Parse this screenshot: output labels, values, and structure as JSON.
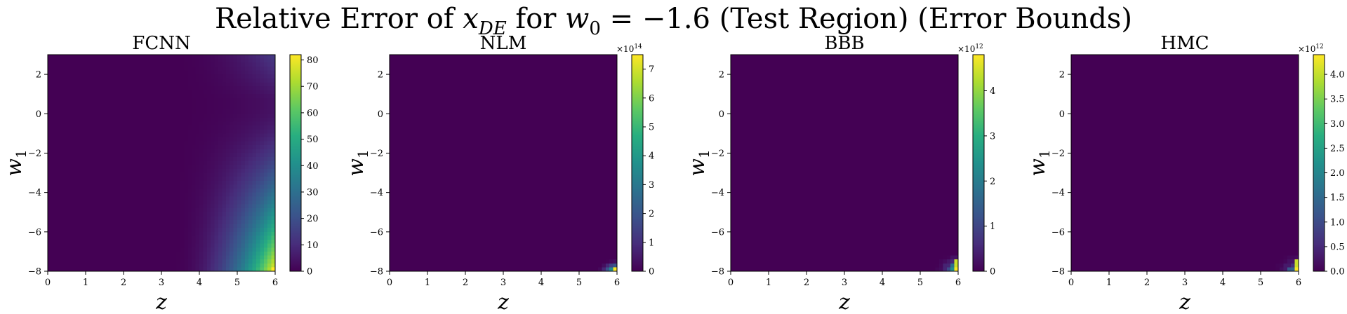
{
  "figure": {
    "title_prefix": "Relative Error of ",
    "title_var": "x",
    "title_var_sub": "DE",
    "title_mid": " for ",
    "title_param": "w",
    "title_param_sub": "0",
    "title_suffix": " = −1.6 (Test Region) (Error Bounds)"
  },
  "colormap": [
    "#440154",
    "#472d7b",
    "#3b528b",
    "#2c728e",
    "#21918c",
    "#28ae80",
    "#5ec962",
    "#addc30",
    "#fde725"
  ],
  "chart_data": [
    {
      "type": "heatmap",
      "title": "FCNN",
      "xlabel": "z",
      "ylabel": "w1",
      "xlim": [
        0,
        6
      ],
      "ylim": [
        -8,
        3
      ],
      "x_ticks": [
        "0",
        "1",
        "2",
        "3",
        "4",
        "5",
        "6"
      ],
      "y_ticks": [
        "2",
        "0",
        "−2",
        "−4",
        "−6",
        "−8"
      ],
      "colorbar": {
        "min": 0,
        "max": 82,
        "ticks": [
          0,
          10,
          20,
          30,
          40,
          50,
          60,
          70,
          80
        ],
        "tick_labels": [
          "0",
          "10",
          "20",
          "30",
          "40",
          "50",
          "60",
          "70",
          "80"
        ],
        "exponent": ""
      },
      "pattern": "smooth",
      "hotspot": {
        "z": 6.0,
        "w1": -8.0,
        "value": 82
      }
    },
    {
      "type": "heatmap",
      "title": "NLM",
      "xlabel": "z",
      "ylabel": "w1",
      "xlim": [
        0,
        6
      ],
      "ylim": [
        -8,
        3
      ],
      "x_ticks": [
        "0",
        "1",
        "2",
        "3",
        "4",
        "5",
        "6"
      ],
      "y_ticks": [
        "2",
        "0",
        "−2",
        "−4",
        "−6",
        "−8"
      ],
      "colorbar": {
        "min": 0,
        "max": 7.5,
        "ticks": [
          0,
          1,
          2,
          3,
          4,
          5,
          6,
          7
        ],
        "tick_labels": [
          "0",
          "1",
          "2",
          "3",
          "4",
          "5",
          "6",
          "7"
        ],
        "exponent": "14"
      },
      "pattern": "corner",
      "hotspot": {
        "z": 6.0,
        "w1": -8.0,
        "value": 7.5
      }
    },
    {
      "type": "heatmap",
      "title": "BBB",
      "xlabel": "z",
      "ylabel": "w1",
      "xlim": [
        0,
        6
      ],
      "ylim": [
        -8,
        3
      ],
      "x_ticks": [
        "0",
        "1",
        "2",
        "3",
        "4",
        "5",
        "6"
      ],
      "y_ticks": [
        "2",
        "0",
        "−2",
        "−4",
        "−6",
        "−8"
      ],
      "colorbar": {
        "min": 0,
        "max": 4.8,
        "ticks": [
          0,
          1,
          2,
          3,
          4
        ],
        "tick_labels": [
          "0",
          "1",
          "2",
          "3",
          "4"
        ],
        "exponent": "12"
      },
      "pattern": "speckle",
      "hotspot": {
        "z": 6.0,
        "w1": -8.0,
        "value": 4.8
      }
    },
    {
      "type": "heatmap",
      "title": "HMC",
      "xlabel": "z",
      "ylabel": "w1",
      "xlim": [
        0,
        6
      ],
      "ylim": [
        -8,
        3
      ],
      "x_ticks": [
        "0",
        "1",
        "2",
        "3",
        "4",
        "5",
        "6"
      ],
      "y_ticks": [
        "2",
        "0",
        "−2",
        "−4",
        "−6",
        "−8"
      ],
      "colorbar": {
        "min": 0,
        "max": 4.4,
        "ticks": [
          0,
          0.5,
          1,
          1.5,
          2,
          2.5,
          3,
          3.5,
          4
        ],
        "tick_labels": [
          "0.0",
          "0.5",
          "1.0",
          "1.5",
          "2.0",
          "2.5",
          "3.0",
          "3.5",
          "4.0"
        ],
        "exponent": "12"
      },
      "pattern": "speckle",
      "hotspot": {
        "z": 6.0,
        "w1": -8.0,
        "value": 4.4
      }
    }
  ]
}
